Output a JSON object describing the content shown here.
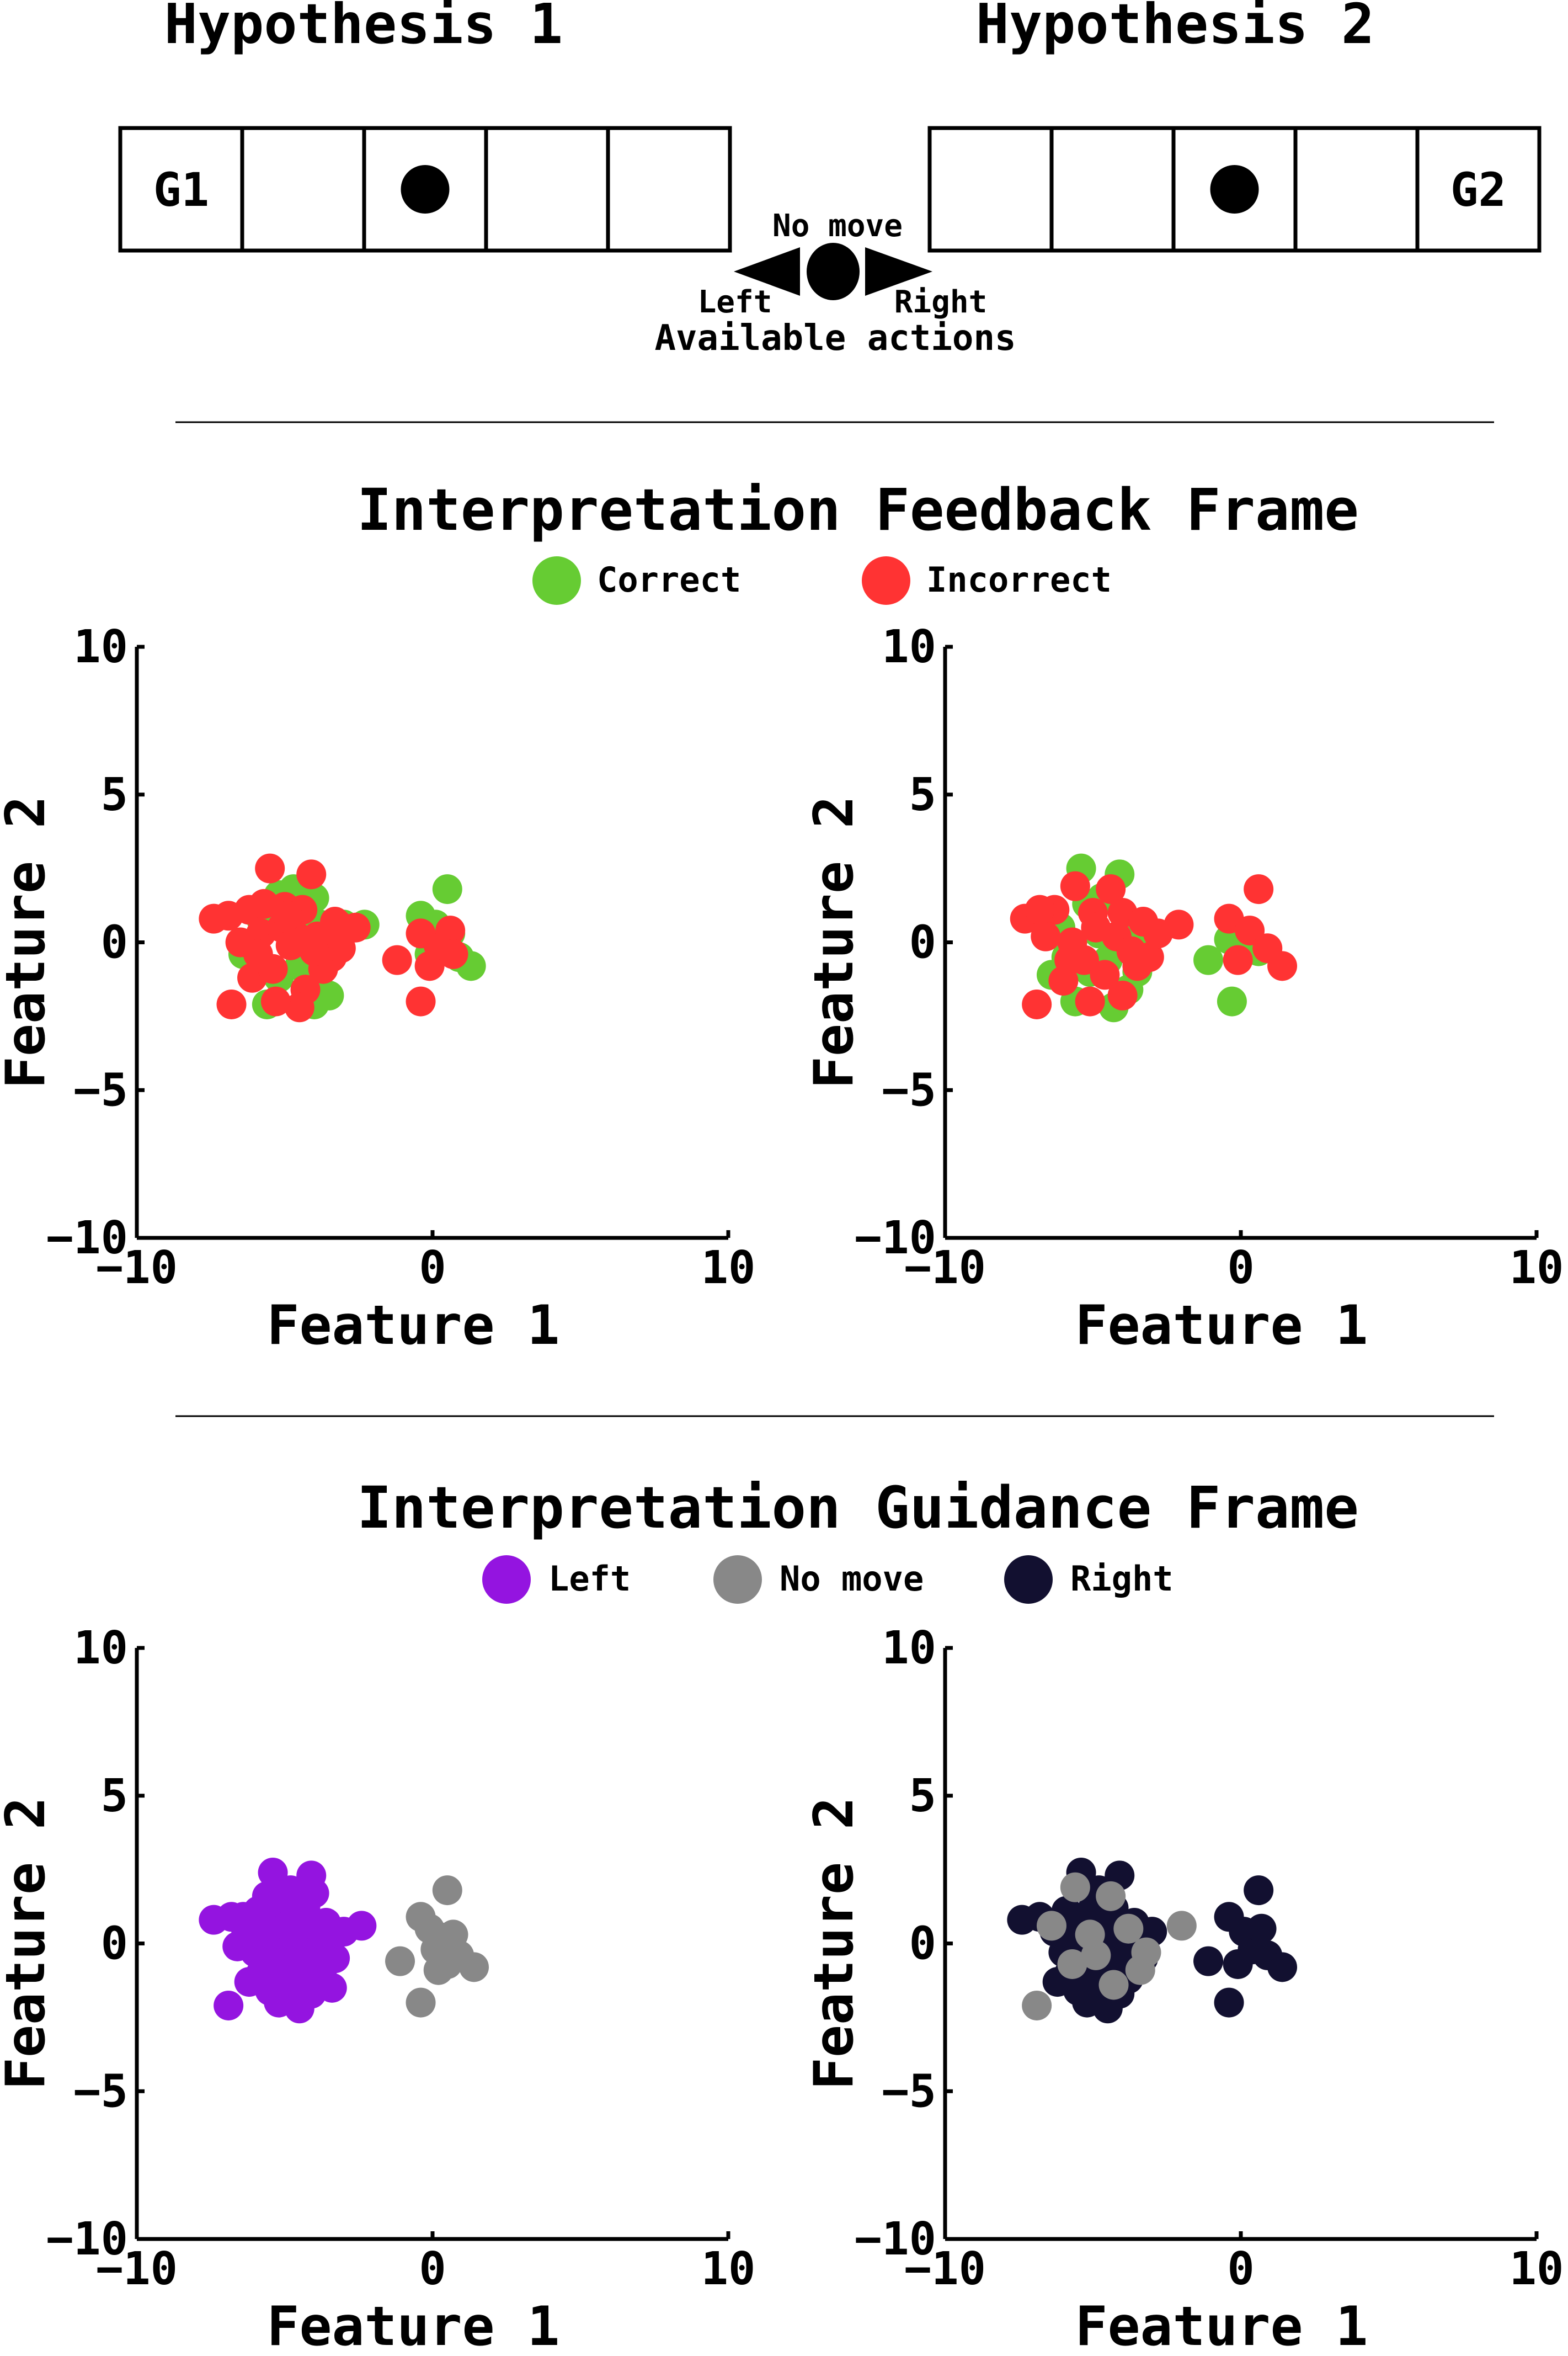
{
  "top": {
    "hypotheses": [
      {
        "title": "Hypothesis 1",
        "cells": [
          "G1",
          "",
          "",
          "",
          ""
        ],
        "agent_cell": 2
      },
      {
        "title": "Hypothesis 2",
        "cells": [
          "",
          "",
          "",
          "",
          "G2"
        ],
        "agent_cell": 2
      }
    ],
    "actions": {
      "no_move": "No move",
      "left": "Left",
      "right": "Right",
      "caption": "Available actions"
    }
  },
  "feedback": {
    "title": "Interpretation Feedback Frame",
    "legend": [
      {
        "label": "Correct",
        "color": "#66cc33"
      },
      {
        "label": "Incorrect",
        "color": "#ff3333"
      }
    ]
  },
  "guidance": {
    "title": "Interpretation Guidance Frame",
    "legend": [
      {
        "label": "Left",
        "color": "#9414e0"
      },
      {
        "label": "No move",
        "color": "#888888"
      },
      {
        "label": "Right",
        "color": "#121030"
      }
    ]
  },
  "chart_data": [
    {
      "type": "scatter",
      "frame": "feedback",
      "panel": "left",
      "xlabel": "Feature 1",
      "ylabel": "Feature 2",
      "xlim": [
        -10,
        10
      ],
      "ylim": [
        -10,
        10
      ],
      "xticks": [
        "−10",
        "0",
        "10"
      ],
      "yticks": [
        "−10",
        "−5",
        "0",
        "5",
        "10"
      ],
      "series": [
        {
          "name": "Correct",
          "color": "#66cc33",
          "points": [
            [
              -5.2,
              1.6
            ],
            [
              -4.0,
              1.5
            ],
            [
              -3.8,
              0.6
            ],
            [
              -6.0,
              -0.6
            ],
            [
              -5.2,
              -1.2
            ],
            [
              -4.5,
              -0.8
            ],
            [
              -4.0,
              -2.1
            ],
            [
              -3.4,
              0.0
            ],
            [
              -4.8,
              0.9
            ],
            [
              -5.6,
              -2.1
            ],
            [
              -3.5,
              -1.8
            ],
            [
              -2.3,
              0.6
            ],
            [
              -5.8,
              0.8
            ],
            [
              -4.2,
              -1.5
            ],
            [
              -4.7,
              1.8
            ],
            [
              -3.0,
              0.6
            ],
            [
              -6.4,
              -0.4
            ],
            [
              -3.6,
              -0.6
            ],
            [
              0.5,
              1.8
            ],
            [
              -0.4,
              0.9
            ],
            [
              0.3,
              -0.2
            ],
            [
              0.9,
              -0.5
            ],
            [
              1.3,
              -0.8
            ],
            [
              0.1,
              0.6
            ],
            [
              0.6,
              0.3
            ],
            [
              -0.1,
              -0.4
            ]
          ]
        },
        {
          "name": "Incorrect",
          "color": "#ff3333",
          "points": [
            [
              -5.5,
              2.5
            ],
            [
              -4.1,
              2.3
            ],
            [
              -6.2,
              1.1
            ],
            [
              -5.0,
              1.2
            ],
            [
              -4.4,
              1.1
            ],
            [
              -3.2,
              0.6
            ],
            [
              -6.5,
              0.0
            ],
            [
              -5.8,
              0.3
            ],
            [
              -5.1,
              0.5
            ],
            [
              -4.6,
              0.2
            ],
            [
              -3.9,
              0.2
            ],
            [
              -3.4,
              -0.5
            ],
            [
              -6.1,
              -1.2
            ],
            [
              -5.4,
              -0.9
            ],
            [
              -4.8,
              -0.1
            ],
            [
              -4.3,
              -1.6
            ],
            [
              -3.7,
              -0.9
            ],
            [
              -6.8,
              -2.1
            ],
            [
              -4.5,
              -2.2
            ],
            [
              -7.4,
              0.8
            ],
            [
              -6.9,
              0.9
            ],
            [
              -5.9,
              -0.4
            ],
            [
              -5.3,
              -2.0
            ],
            [
              -3.1,
              -0.2
            ],
            [
              -2.6,
              0.5
            ],
            [
              -4.9,
              0.9
            ],
            [
              -4.0,
              -0.3
            ],
            [
              -5.7,
              1.3
            ],
            [
              -3.3,
              0.7
            ],
            [
              -1.2,
              -0.6
            ],
            [
              -0.4,
              0.3
            ],
            [
              0.2,
              -0.1
            ],
            [
              -0.1,
              -0.8
            ],
            [
              0.6,
              0.4
            ],
            [
              -0.4,
              -2.0
            ],
            [
              0.7,
              -0.4
            ]
          ]
        }
      ]
    },
    {
      "type": "scatter",
      "frame": "feedback",
      "panel": "right",
      "xlabel": "Feature 1",
      "ylabel": "Feature 2",
      "xlim": [
        -10,
        10
      ],
      "ylim": [
        -10,
        10
      ],
      "xticks": [
        "−10",
        "0",
        "10"
      ],
      "yticks": [
        "−10",
        "−5",
        "0",
        "5",
        "10"
      ],
      "series": [
        {
          "name": "Correct",
          "color": "#66cc33",
          "points": [
            [
              -5.4,
              2.5
            ],
            [
              -4.1,
              2.3
            ],
            [
              -5.2,
              1.3
            ],
            [
              -4.7,
              1.5
            ],
            [
              -5.9,
              -0.5
            ],
            [
              -5.1,
              -1.0
            ],
            [
              -4.5,
              -0.6
            ],
            [
              -3.9,
              0.5
            ],
            [
              -4.3,
              -2.2
            ],
            [
              -5.6,
              -2.0
            ],
            [
              -3.5,
              -1.0
            ],
            [
              -3.2,
              0.4
            ],
            [
              -6.1,
              0.5
            ],
            [
              -4.8,
              0.3
            ],
            [
              -3.8,
              -1.6
            ],
            [
              -6.4,
              -1.1
            ],
            [
              -1.1,
              -0.6
            ],
            [
              -0.4,
              0.1
            ],
            [
              -0.3,
              -2.0
            ],
            [
              0.3,
              -0.2
            ],
            [
              0.6,
              -0.3
            ]
          ]
        },
        {
          "name": "Incorrect",
          "color": "#ff3333",
          "points": [
            [
              -5.6,
              1.9
            ],
            [
              -4.4,
              1.8
            ],
            [
              -6.3,
              1.1
            ],
            [
              -5.0,
              1.0
            ],
            [
              -4.0,
              1.0
            ],
            [
              -3.3,
              0.7
            ],
            [
              -6.6,
              0.2
            ],
            [
              -5.7,
              0.0
            ],
            [
              -4.9,
              0.5
            ],
            [
              -4.2,
              0.2
            ],
            [
              -3.7,
              -0.3
            ],
            [
              -3.1,
              -0.5
            ],
            [
              -6.0,
              -1.3
            ],
            [
              -5.3,
              -0.6
            ],
            [
              -4.6,
              -1.1
            ],
            [
              -4.0,
              -1.8
            ],
            [
              -3.5,
              -0.8
            ],
            [
              -6.9,
              -2.1
            ],
            [
              -5.1,
              -2.0
            ],
            [
              -7.3,
              0.8
            ],
            [
              -6.8,
              1.1
            ],
            [
              -5.8,
              -0.6
            ],
            [
              -2.1,
              0.6
            ],
            [
              -2.8,
              0.3
            ],
            [
              -0.4,
              0.8
            ],
            [
              0.6,
              1.8
            ],
            [
              0.3,
              0.4
            ],
            [
              0.9,
              -0.2
            ],
            [
              1.4,
              -0.8
            ],
            [
              -0.1,
              -0.6
            ]
          ]
        }
      ]
    },
    {
      "type": "scatter",
      "frame": "guidance",
      "panel": "left",
      "xlabel": "Feature 1",
      "ylabel": "Feature 2",
      "xlim": [
        -10,
        10
      ],
      "ylim": [
        -10,
        10
      ],
      "xticks": [
        "−10",
        "0",
        "10"
      ],
      "yticks": [
        "−10",
        "−5",
        "0",
        "5",
        "10"
      ],
      "series": [
        {
          "name": "Left",
          "color": "#9414e0",
          "points": [
            [
              -5.4,
              2.4
            ],
            [
              -4.1,
              2.3
            ],
            [
              -4.8,
              1.8
            ],
            [
              -5.9,
              1.1
            ],
            [
              -5.0,
              1.2
            ],
            [
              -4.3,
              1.2
            ],
            [
              -3.6,
              0.7
            ],
            [
              -6.3,
              0.4
            ],
            [
              -5.6,
              0.5
            ],
            [
              -4.9,
              0.6
            ],
            [
              -4.2,
              0.4
            ],
            [
              -3.5,
              0.1
            ],
            [
              -6.0,
              -0.3
            ],
            [
              -5.3,
              -0.2
            ],
            [
              -4.6,
              -0.1
            ],
            [
              -3.9,
              -0.3
            ],
            [
              -3.3,
              -0.5
            ],
            [
              -5.8,
              -1.0
            ],
            [
              -5.1,
              -0.9
            ],
            [
              -4.4,
              -0.9
            ],
            [
              -3.8,
              -1.2
            ],
            [
              -5.5,
              -1.6
            ],
            [
              -4.8,
              -1.8
            ],
            [
              -4.1,
              -1.7
            ],
            [
              -5.2,
              -2.0
            ],
            [
              -4.5,
              -2.2
            ],
            [
              -6.9,
              -2.1
            ],
            [
              -7.4,
              0.8
            ],
            [
              -6.8,
              0.9
            ],
            [
              -2.4,
              0.6
            ],
            [
              -3.0,
              0.4
            ],
            [
              -6.6,
              -0.1
            ],
            [
              -3.4,
              -1.5
            ],
            [
              -6.2,
              -1.3
            ],
            [
              -5.6,
              1.6
            ],
            [
              -4.0,
              1.7
            ],
            [
              -4.7,
              0.0
            ],
            [
              -5.0,
              -1.4
            ],
            [
              -3.7,
              -0.8
            ],
            [
              -6.4,
              0.9
            ]
          ]
        },
        {
          "name": "No move",
          "color": "#888888",
          "points": [
            [
              0.5,
              1.8
            ],
            [
              -0.4,
              0.9
            ],
            [
              0.3,
              0.2
            ],
            [
              -1.1,
              -0.6
            ],
            [
              0.1,
              -0.2
            ],
            [
              0.9,
              -0.4
            ],
            [
              1.4,
              -0.8
            ],
            [
              -0.4,
              -2.0
            ],
            [
              0.5,
              -0.7
            ],
            [
              -0.1,
              0.5
            ],
            [
              0.7,
              0.3
            ],
            [
              0.2,
              -0.9
            ]
          ]
        }
      ]
    },
    {
      "type": "scatter",
      "frame": "guidance",
      "panel": "right",
      "xlabel": "Feature 1",
      "ylabel": "Feature 2",
      "xlim": [
        -10,
        10
      ],
      "ylim": [
        -10,
        10
      ],
      "xticks": [
        "−10",
        "0",
        "10"
      ],
      "yticks": [
        "−10",
        "−5",
        "0",
        "5",
        "10"
      ],
      "series": [
        {
          "name": "Right",
          "color": "#121030",
          "points": [
            [
              -5.4,
              2.4
            ],
            [
              -4.1,
              2.3
            ],
            [
              -4.8,
              1.8
            ],
            [
              -5.9,
              1.1
            ],
            [
              -5.0,
              1.2
            ],
            [
              -4.3,
              1.2
            ],
            [
              -3.6,
              0.7
            ],
            [
              -6.3,
              0.4
            ],
            [
              -5.6,
              0.5
            ],
            [
              -4.9,
              0.6
            ],
            [
              -4.2,
              0.4
            ],
            [
              -3.5,
              0.1
            ],
            [
              -6.0,
              -0.3
            ],
            [
              -5.3,
              -0.2
            ],
            [
              -4.6,
              -0.1
            ],
            [
              -3.9,
              -0.3
            ],
            [
              -3.3,
              -0.5
            ],
            [
              -5.8,
              -1.0
            ],
            [
              -5.1,
              -0.9
            ],
            [
              -4.4,
              -0.9
            ],
            [
              -3.8,
              -1.2
            ],
            [
              -5.5,
              -1.6
            ],
            [
              -4.8,
              -1.8
            ],
            [
              -4.1,
              -1.7
            ],
            [
              -5.2,
              -2.0
            ],
            [
              -4.5,
              -2.2
            ],
            [
              -7.4,
              0.8
            ],
            [
              -6.8,
              0.9
            ],
            [
              -3.0,
              0.4
            ],
            [
              -6.2,
              -1.3
            ],
            [
              -1.1,
              -0.6
            ],
            [
              -0.4,
              0.9
            ],
            [
              0.6,
              1.8
            ],
            [
              0.1,
              0.4
            ],
            [
              0.9,
              -0.4
            ],
            [
              1.4,
              -0.8
            ],
            [
              -0.4,
              -2.0
            ],
            [
              0.4,
              -0.2
            ],
            [
              -0.1,
              -0.7
            ],
            [
              0.7,
              0.5
            ]
          ]
        },
        {
          "name": "No move",
          "color": "#888888",
          "points": [
            [
              -5.6,
              1.9
            ],
            [
              -4.4,
              1.6
            ],
            [
              -6.4,
              0.6
            ],
            [
              -5.1,
              0.3
            ],
            [
              -3.8,
              0.5
            ],
            [
              -2.0,
              0.6
            ],
            [
              -5.7,
              -0.7
            ],
            [
              -4.3,
              -1.4
            ],
            [
              -3.4,
              -0.9
            ],
            [
              -6.9,
              -2.1
            ],
            [
              -4.9,
              -0.4
            ],
            [
              -3.2,
              -0.3
            ]
          ]
        }
      ]
    }
  ]
}
